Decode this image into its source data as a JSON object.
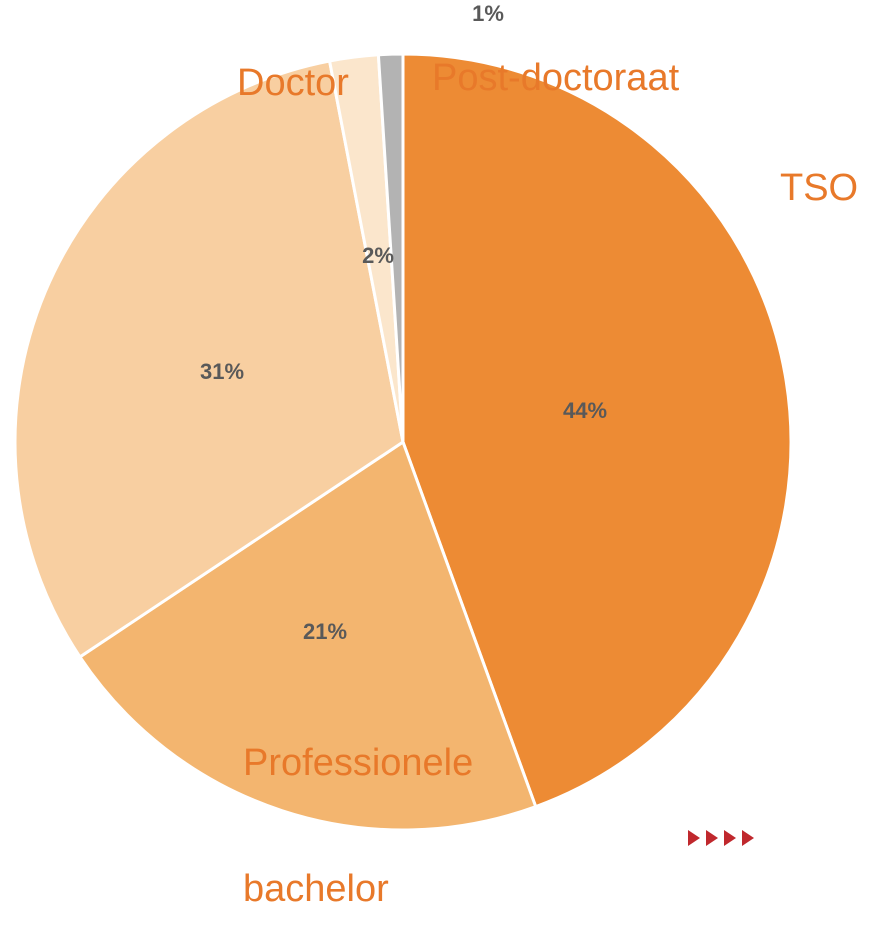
{
  "chart_data": {
    "type": "pie",
    "categories": [
      "TSO",
      "Professionele bachelor",
      null,
      "Doctor",
      "Post-doctoraat"
    ],
    "values": [
      44,
      21,
      31,
      2,
      1
    ],
    "value_labels": [
      "44%",
      "21%",
      "31%",
      "2%",
      "1%"
    ],
    "colors": [
      "#ED8B34",
      "#F3B56F",
      "#F8CFA1",
      "#FBE6CC",
      "#B3B3B3"
    ]
  }
}
